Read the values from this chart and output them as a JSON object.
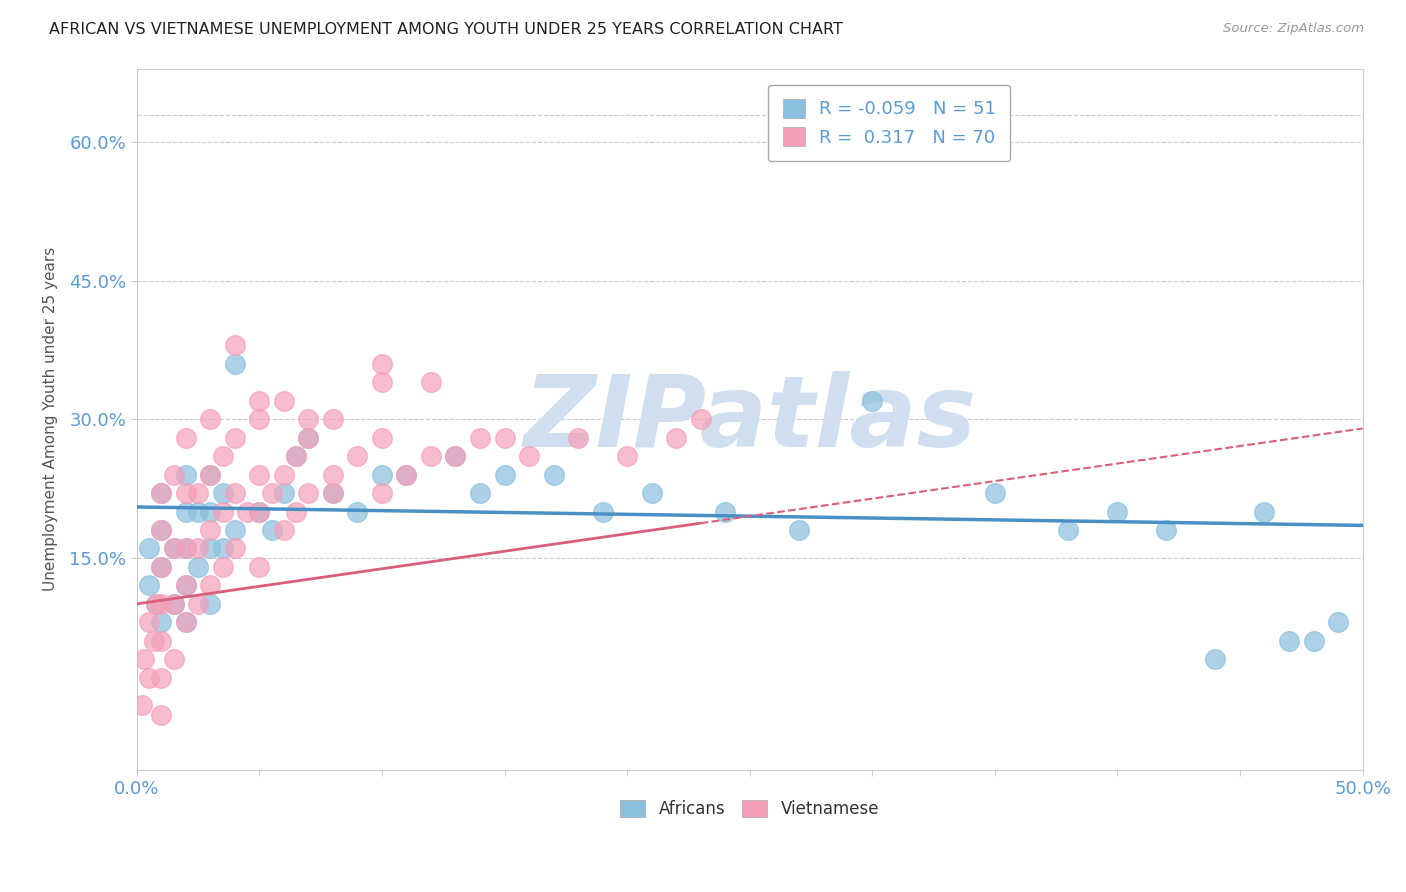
{
  "title": "AFRICAN VS VIETNAMESE UNEMPLOYMENT AMONG YOUTH UNDER 25 YEARS CORRELATION CHART",
  "source": "Source: ZipAtlas.com",
  "ylabel": "Unemployment Among Youth under 25 years",
  "xlim": [
    0.0,
    0.5
  ],
  "ylim": [
    -0.08,
    0.68
  ],
  "xticks": [
    0.0,
    0.05,
    0.1,
    0.15,
    0.2,
    0.25,
    0.3,
    0.35,
    0.4,
    0.45,
    0.5
  ],
  "xtick_labels": [
    "0.0%",
    "",
    "",
    "",
    "",
    "",
    "",
    "",
    "",
    "",
    "50.0%"
  ],
  "yticks": [
    0.15,
    0.3,
    0.45,
    0.6
  ],
  "ytick_labels": [
    "15.0%",
    "30.0%",
    "45.0%",
    "60.0%"
  ],
  "africans_color": "#8bbfde",
  "vietnamese_color": "#f4a0b8",
  "africans_line_color": "#4a90c4",
  "vietnamese_line_color": "#d95f7a",
  "R_africans": -0.059,
  "N_africans": 51,
  "R_vietnamese": 0.317,
  "N_vietnamese": 70,
  "watermark": "ZIPatlas",
  "watermark_color": "#d0dff0",
  "background_color": "#ffffff",
  "grid_color": "#cccccc",
  "tick_color": "#5b9bd5",
  "africans_x": [
    0.005,
    0.005,
    0.008,
    0.01,
    0.01,
    0.01,
    0.01,
    0.015,
    0.015,
    0.02,
    0.02,
    0.02,
    0.02,
    0.02,
    0.025,
    0.025,
    0.03,
    0.03,
    0.03,
    0.03,
    0.035,
    0.035,
    0.04,
    0.04,
    0.05,
    0.055,
    0.06,
    0.065,
    0.07,
    0.08,
    0.09,
    0.1,
    0.11,
    0.13,
    0.14,
    0.15,
    0.17,
    0.19,
    0.21,
    0.24,
    0.27,
    0.3,
    0.35,
    0.38,
    0.4,
    0.42,
    0.44,
    0.46,
    0.47,
    0.48,
    0.49
  ],
  "africans_y": [
    0.12,
    0.16,
    0.1,
    0.08,
    0.14,
    0.18,
    0.22,
    0.1,
    0.16,
    0.08,
    0.12,
    0.16,
    0.2,
    0.24,
    0.14,
    0.2,
    0.1,
    0.16,
    0.2,
    0.24,
    0.16,
    0.22,
    0.18,
    0.36,
    0.2,
    0.18,
    0.22,
    0.26,
    0.28,
    0.22,
    0.2,
    0.24,
    0.24,
    0.26,
    0.22,
    0.24,
    0.24,
    0.2,
    0.22,
    0.2,
    0.18,
    0.32,
    0.22,
    0.18,
    0.2,
    0.18,
    0.04,
    0.2,
    0.06,
    0.06,
    0.08
  ],
  "vietnamese_x": [
    0.002,
    0.003,
    0.005,
    0.005,
    0.007,
    0.008,
    0.01,
    0.01,
    0.01,
    0.01,
    0.01,
    0.01,
    0.01,
    0.015,
    0.015,
    0.015,
    0.015,
    0.02,
    0.02,
    0.02,
    0.02,
    0.02,
    0.025,
    0.025,
    0.025,
    0.03,
    0.03,
    0.03,
    0.03,
    0.035,
    0.035,
    0.035,
    0.04,
    0.04,
    0.04,
    0.045,
    0.05,
    0.05,
    0.05,
    0.05,
    0.055,
    0.06,
    0.06,
    0.065,
    0.065,
    0.07,
    0.07,
    0.08,
    0.08,
    0.09,
    0.1,
    0.1,
    0.11,
    0.12,
    0.13,
    0.14,
    0.15,
    0.16,
    0.18,
    0.2,
    0.22,
    0.23,
    0.1,
    0.1,
    0.12,
    0.04,
    0.05,
    0.06,
    0.07,
    0.08
  ],
  "vietnamese_y": [
    -0.01,
    0.04,
    0.02,
    0.08,
    0.06,
    0.1,
    -0.02,
    0.02,
    0.06,
    0.1,
    0.14,
    0.18,
    0.22,
    0.04,
    0.1,
    0.16,
    0.24,
    0.08,
    0.12,
    0.16,
    0.22,
    0.28,
    0.1,
    0.16,
    0.22,
    0.12,
    0.18,
    0.24,
    0.3,
    0.14,
    0.2,
    0.26,
    0.16,
    0.22,
    0.28,
    0.2,
    0.14,
    0.2,
    0.24,
    0.3,
    0.22,
    0.18,
    0.24,
    0.2,
    0.26,
    0.22,
    0.28,
    0.24,
    0.3,
    0.26,
    0.22,
    0.28,
    0.24,
    0.26,
    0.26,
    0.28,
    0.28,
    0.26,
    0.28,
    0.26,
    0.28,
    0.3,
    0.36,
    0.34,
    0.34,
    0.38,
    0.32,
    0.32,
    0.3,
    0.22
  ],
  "viet_trend_x_start": 0.0,
  "viet_trend_x_end": 0.5,
  "viet_trend_y_start": 0.1,
  "viet_trend_y_end": 0.29,
  "afr_trend_x_start": 0.0,
  "afr_trend_x_end": 0.5,
  "afr_trend_y_start": 0.205,
  "afr_trend_y_end": 0.185
}
